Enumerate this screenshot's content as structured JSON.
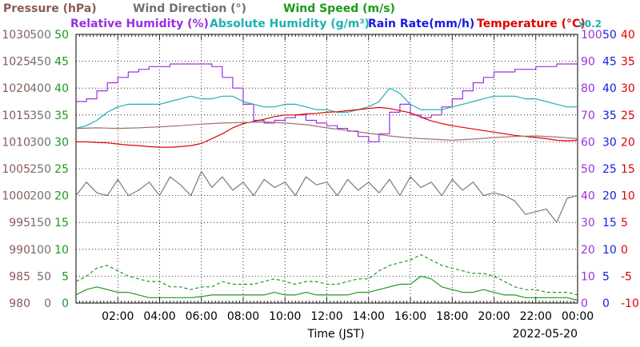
{
  "chart_data": {
    "type": "line",
    "date": "2022-05-20",
    "xlabel": "Time (JST)",
    "x_ticks": [
      "02:00",
      "04:00",
      "06:00",
      "08:00",
      "10:00",
      "12:00",
      "14:00",
      "16:00",
      "18:00",
      "20:00",
      "22:00",
      "00:00"
    ],
    "x_range_hours": [
      0,
      24
    ],
    "grid": true,
    "legend": {
      "row1": [
        "Pressure (hPa)",
        "Wind Direction (°)",
        "Wind Speed (m/s)"
      ],
      "row2": [
        "Relative Humidity (%)",
        "Absolute Humidity (g/m³)",
        "Rain Rate(mm/h)",
        "Temperature (°C)"
      ],
      "abs_humidity_scale": "x0.2"
    },
    "axes": {
      "pressure": {
        "ticks": [
          "1030",
          "1025",
          "1020",
          "1015",
          "1010",
          "1005",
          "1000",
          "995",
          "990",
          "985",
          "980"
        ],
        "range": [
          980,
          1030
        ],
        "color": "#8b5a5a"
      },
      "wind_direction": {
        "ticks": [
          "500",
          "450",
          "400",
          "350",
          "300",
          "250",
          "200",
          "150",
          "100",
          "50",
          "0"
        ],
        "range": [
          0,
          500
        ],
        "color": "#707070"
      },
      "wind_speed": {
        "ticks": [
          "50",
          "45",
          "40",
          "35",
          "30",
          "25",
          "20",
          "15",
          "10",
          "5",
          "0"
        ],
        "range": [
          0,
          50
        ],
        "color": "#1a9a1a"
      },
      "humidity": {
        "ticks": [
          "100",
          "90",
          "80",
          "70",
          "60",
          "50",
          "40",
          "30",
          "20",
          "10",
          "0"
        ],
        "range": [
          0,
          100
        ],
        "color": "#9a30e0"
      },
      "rain": {
        "ticks": [
          "50",
          "45",
          "40",
          "35",
          "30",
          "25",
          "20",
          "15",
          "10",
          "5",
          "0"
        ],
        "range": [
          0,
          50
        ],
        "color": "#1a1ae0"
      },
      "temperature": {
        "ticks": [
          "40",
          "35",
          "30",
          "25",
          "20",
          "15",
          "10",
          "5",
          "0",
          "-5",
          "-10"
        ],
        "range": [
          -10,
          40
        ],
        "color": "#e00000"
      }
    },
    "series": [
      {
        "name": "Relative Humidity (%)",
        "axis": "humidity",
        "color": "#9a30e0",
        "style": "step",
        "x": [
          0,
          0.5,
          1,
          1.5,
          2,
          2.5,
          3,
          3.5,
          4,
          4.5,
          5,
          5.5,
          6,
          6.5,
          7,
          7.5,
          8,
          8.5,
          9,
          9.5,
          10,
          10.5,
          11,
          11.5,
          12,
          12.5,
          13,
          13.5,
          14,
          14.5,
          15,
          15.5,
          16,
          16.5,
          17,
          17.5,
          18,
          18.5,
          19,
          19.5,
          20,
          20.5,
          21,
          21.5,
          22,
          22.5,
          23,
          23.5,
          24
        ],
        "values": [
          75,
          76,
          79,
          82,
          84,
          86,
          87,
          88,
          88,
          89,
          89,
          89,
          89,
          88,
          84,
          80,
          74,
          68,
          67,
          68,
          69,
          70,
          68,
          67,
          66,
          65,
          64,
          62,
          60,
          63,
          71,
          74,
          70,
          69,
          70,
          73,
          76,
          79,
          82,
          84,
          86,
          86,
          87,
          87,
          88,
          88,
          89,
          89,
          89
        ]
      },
      {
        "name": "Absolute Humidity (g/m³)",
        "axis": "humidity",
        "color": "#20b0b0",
        "x": [
          0,
          0.5,
          1,
          1.5,
          2,
          2.5,
          3,
          3.5,
          4,
          4.5,
          5,
          5.5,
          6,
          6.5,
          7,
          7.5,
          8,
          8.5,
          9,
          9.5,
          10,
          10.5,
          11,
          11.5,
          12,
          12.5,
          13,
          13.5,
          14,
          14.5,
          15,
          15.5,
          16,
          16.5,
          17,
          17.5,
          18,
          18.5,
          19,
          19.5,
          20,
          20.5,
          21,
          21.5,
          22,
          22.5,
          23,
          23.5,
          24
        ],
        "values": [
          65,
          66,
          68,
          71,
          73,
          74,
          74,
          74,
          74,
          75,
          76,
          77,
          76,
          76,
          77,
          77,
          75,
          74,
          73,
          73,
          74,
          74,
          73,
          72,
          72,
          71,
          71,
          72,
          73,
          75,
          80,
          78,
          74,
          72,
          72,
          72,
          73,
          74,
          75,
          76,
          77,
          77,
          77,
          76,
          76,
          75,
          74,
          73,
          73
        ]
      },
      {
        "name": "Temperature (°C)",
        "axis": "temperature",
        "color": "#e00000",
        "x": [
          0,
          0.5,
          1,
          1.5,
          2,
          2.5,
          3,
          3.5,
          4,
          4.5,
          5,
          5.5,
          6,
          6.5,
          7,
          7.5,
          8,
          8.5,
          9,
          9.5,
          10,
          10.5,
          11,
          11.5,
          12,
          12.5,
          13,
          13.5,
          14,
          14.5,
          15,
          15.5,
          16,
          16.5,
          17,
          17.5,
          18,
          18.5,
          19,
          19.5,
          20,
          20.5,
          21,
          21.5,
          22,
          22.5,
          23,
          23.5,
          24
        ],
        "values": [
          20.0,
          20.0,
          19.9,
          19.8,
          19.6,
          19.4,
          19.3,
          19.1,
          19.0,
          19.0,
          19.1,
          19.3,
          19.7,
          20.6,
          21.5,
          22.6,
          23.4,
          23.8,
          24.2,
          24.7,
          25.0,
          25.0,
          25.2,
          25.3,
          25.5,
          25.6,
          25.8,
          26.0,
          26.2,
          26.4,
          26.2,
          25.8,
          25.4,
          24.6,
          23.9,
          23.4,
          23.0,
          22.7,
          22.4,
          22.1,
          21.8,
          21.5,
          21.2,
          21.0,
          20.8,
          20.6,
          20.3,
          20.2,
          20.3
        ]
      },
      {
        "name": "Pressure (hPa)",
        "axis": "pressure",
        "color": "#a07070",
        "x": [
          0,
          1,
          2,
          3,
          4,
          5,
          6,
          7,
          8,
          9,
          10,
          11,
          12,
          13,
          14,
          15,
          16,
          17,
          18,
          19,
          20,
          21,
          22,
          23,
          24
        ],
        "values": [
          1012.5,
          1012.6,
          1012.5,
          1012.6,
          1012.8,
          1013.0,
          1013.3,
          1013.5,
          1013.6,
          1013.7,
          1013.5,
          1013.2,
          1012.6,
          1012.1,
          1011.6,
          1011.1,
          1010.7,
          1010.5,
          1010.3,
          1010.5,
          1010.8,
          1011.0,
          1011.1,
          1010.9,
          1010.6
        ]
      },
      {
        "name": "Wind Direction (°)",
        "axis": "wind_direction",
        "color": "#7a7a7a",
        "x": [
          0,
          0.5,
          1,
          1.5,
          2,
          2.5,
          3,
          3.5,
          4,
          4.5,
          5,
          5.5,
          6,
          6.5,
          7,
          7.5,
          8,
          8.5,
          9,
          9.5,
          10,
          10.5,
          11,
          11.5,
          12,
          12.5,
          13,
          13.5,
          14,
          14.5,
          15,
          15.5,
          16,
          16.5,
          17,
          17.5,
          18,
          18.5,
          19,
          19.5,
          20,
          20.5,
          21,
          21.5,
          22,
          22.5,
          23,
          23.5,
          24
        ],
        "values": [
          200,
          225,
          205,
          200,
          230,
          200,
          210,
          225,
          200,
          235,
          220,
          200,
          245,
          215,
          235,
          210,
          225,
          200,
          230,
          215,
          225,
          200,
          235,
          220,
          225,
          200,
          230,
          210,
          225,
          205,
          230,
          200,
          235,
          215,
          225,
          200,
          230,
          210,
          225,
          200,
          205,
          200,
          190,
          165,
          170,
          175,
          150,
          195,
          200
        ]
      },
      {
        "name": "Wind Speed (m/s) avg",
        "axis": "wind_speed",
        "color": "#1a9a1a",
        "x": [
          0,
          0.5,
          1,
          1.5,
          2,
          2.5,
          3,
          3.5,
          4,
          4.5,
          5,
          5.5,
          6,
          6.5,
          7,
          7.5,
          8,
          8.5,
          9,
          9.5,
          10,
          10.5,
          11,
          11.5,
          12,
          12.5,
          13,
          13.5,
          14,
          14.5,
          15,
          15.5,
          16,
          16.5,
          17,
          17.5,
          18,
          18.5,
          19,
          19.5,
          20,
          20.5,
          21,
          21.5,
          22,
          22.5,
          23,
          23.5,
          24
        ],
        "values": [
          1.5,
          2.5,
          3,
          2.5,
          2,
          2,
          1.5,
          1,
          1,
          1,
          1,
          1,
          1.2,
          1.5,
          1.5,
          1.5,
          1.5,
          1.5,
          1.5,
          2,
          1.5,
          1.5,
          2,
          1.5,
          1.5,
          1.5,
          1.5,
          2,
          2,
          2.5,
          3,
          3.5,
          3.5,
          5,
          4.5,
          3,
          2.5,
          2,
          2,
          2.5,
          2,
          1.5,
          1.5,
          1,
          1,
          1,
          1,
          1,
          0.5
        ]
      },
      {
        "name": "Wind Speed (m/s) gust",
        "axis": "wind_speed",
        "color": "#1a9a1a",
        "dashed": true,
        "x": [
          0,
          0.5,
          1,
          1.5,
          2,
          2.5,
          3,
          3.5,
          4,
          4.5,
          5,
          5.5,
          6,
          6.5,
          7,
          7.5,
          8,
          8.5,
          9,
          9.5,
          10,
          10.5,
          11,
          11.5,
          12,
          12.5,
          13,
          13.5,
          14,
          14.5,
          15,
          15.5,
          16,
          16.5,
          17,
          17.5,
          18,
          18.5,
          19,
          19.5,
          20,
          20.5,
          21,
          21.5,
          22,
          22.5,
          23,
          23.5,
          24
        ],
        "values": [
          4,
          5,
          6.5,
          7,
          6,
          5,
          4.5,
          4,
          4,
          3,
          3,
          2.5,
          3,
          3,
          4,
          3.5,
          3.5,
          3.5,
          4,
          4.5,
          4,
          3.5,
          4,
          4,
          3.5,
          3.5,
          4,
          4.5,
          4.5,
          6,
          7,
          7.5,
          8,
          9,
          8,
          7,
          6.5,
          6,
          5.5,
          5.5,
          5,
          4,
          3,
          2.5,
          2.5,
          2,
          2,
          2,
          1.5
        ]
      }
    ]
  }
}
